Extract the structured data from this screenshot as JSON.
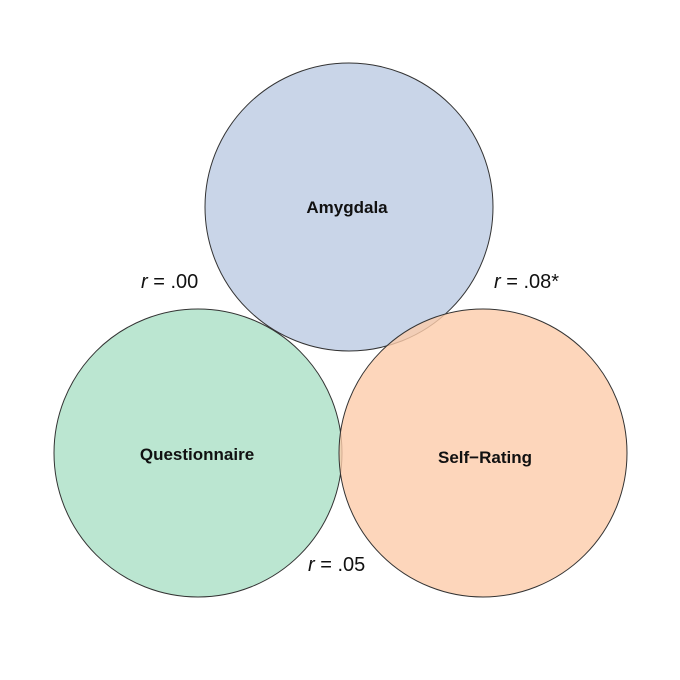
{
  "diagram": {
    "colors": {
      "amygdala": "#C9D5E8",
      "questionnaire": "#B4E3CC",
      "self_rating": "#FDCCAA",
      "outline": "#333333"
    },
    "circles": {
      "amygdala": {
        "label": "Amygdala"
      },
      "questionnaire": {
        "label": "Questionnaire"
      },
      "self_rating": {
        "label": "Self−Rating"
      }
    },
    "correlations": {
      "amygdala_questionnaire": {
        "symbol": "r",
        "value": " = .00"
      },
      "amygdala_self_rating": {
        "symbol": "r",
        "value": " = .08*"
      },
      "questionnaire_self_rating": {
        "symbol": "r",
        "value": " = .05"
      }
    }
  }
}
